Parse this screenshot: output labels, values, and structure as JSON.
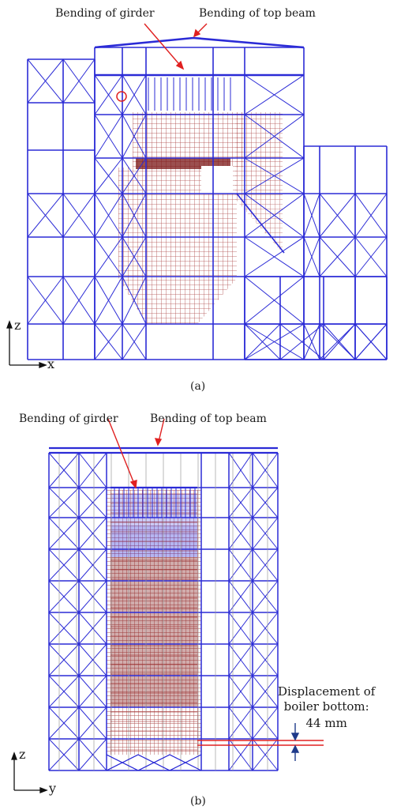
{
  "panel_a": {
    "label_girder": "Bending of girder",
    "label_top_beam": "Bending of top beam",
    "axis_z": "z",
    "axis_h": "x",
    "caption": "(a)"
  },
  "panel_b": {
    "label_girder": "Bending of girder",
    "label_top_beam": "Bending of top beam",
    "displacement_line1": "Displacement of",
    "displacement_line2": "boiler bottom:",
    "displacement_value": "44 mm",
    "axis_z": "z",
    "axis_h": "y",
    "caption": "(b)"
  },
  "colors": {
    "frame": "#2b2bd6",
    "boiler": "#9a1c1c",
    "grey": "#9a9a9a",
    "arrow": "#e02020",
    "dim": "#1f3a8a"
  }
}
